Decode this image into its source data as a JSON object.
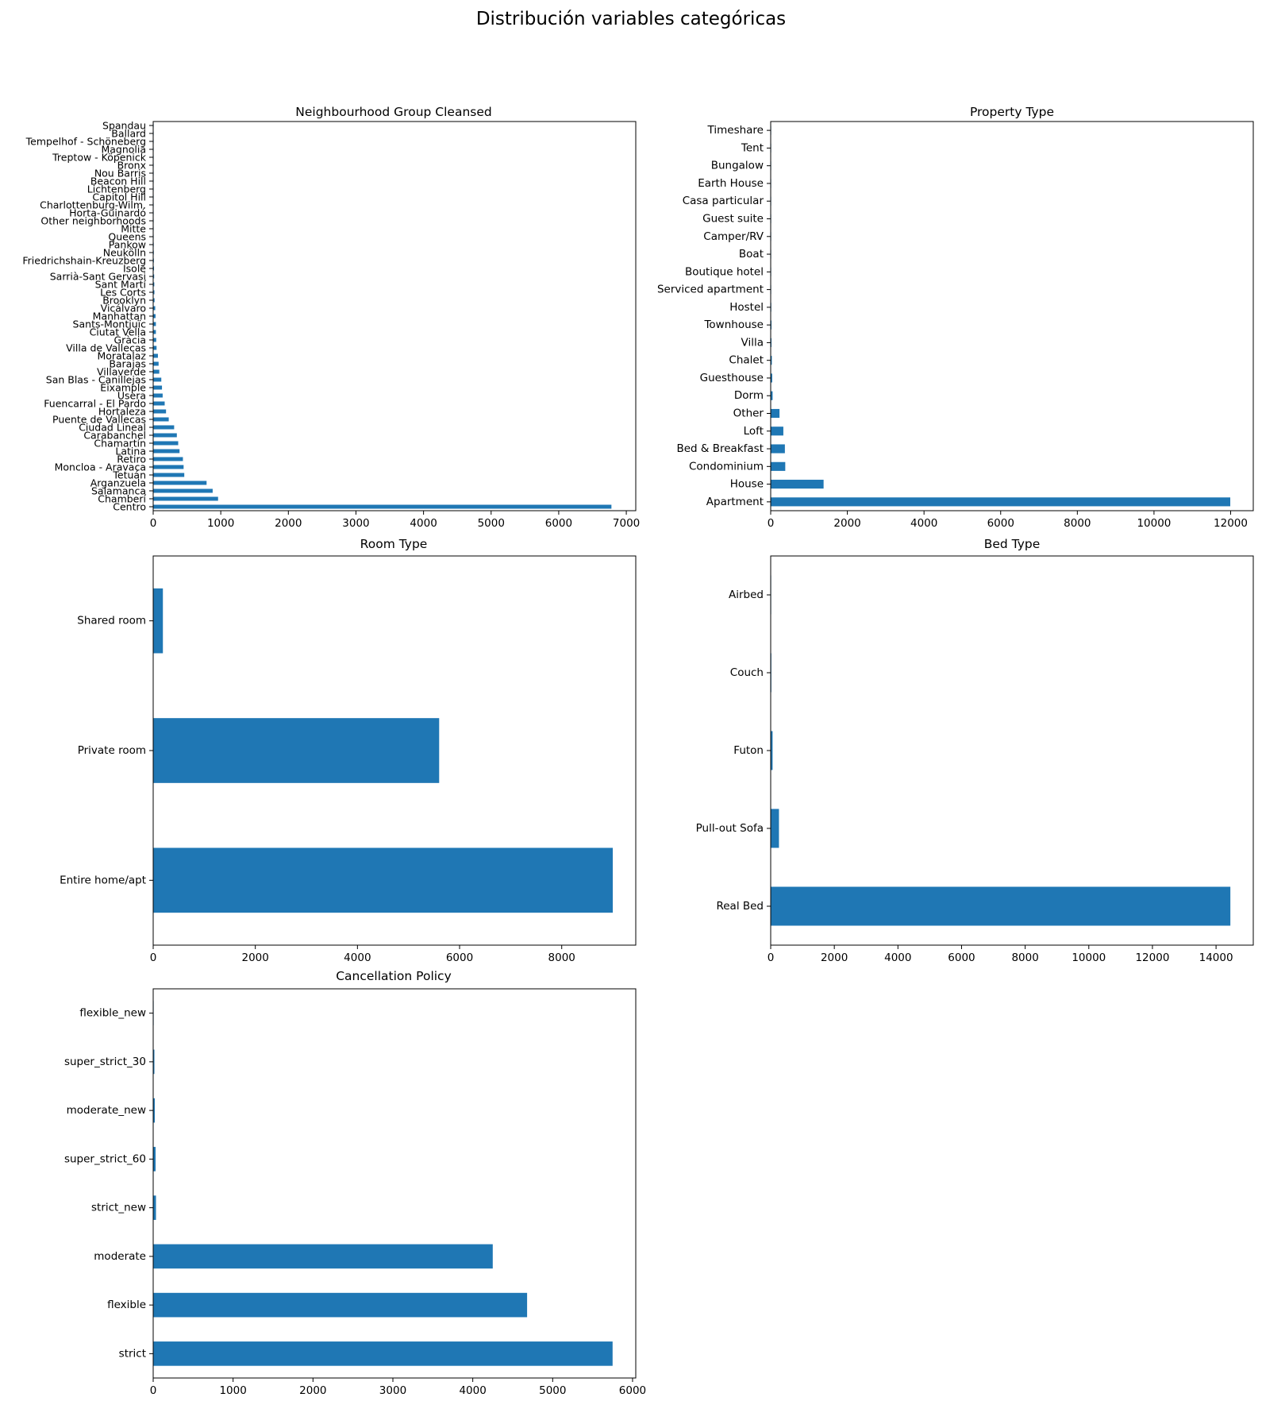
{
  "figure": {
    "suptitle": "Distribución variables categóricas"
  },
  "colors": {
    "bar": "#1f77b4",
    "axis": "#000000",
    "background": "#ffffff"
  },
  "chart_data": [
    {
      "type": "bar",
      "orientation": "horizontal",
      "title": "Neighbourhood Group Cleansed",
      "xlabel": "",
      "ylabel": "",
      "xlim": [
        0,
        7140
      ],
      "xticks": [
        0,
        1000,
        2000,
        3000,
        4000,
        5000,
        6000,
        7000
      ],
      "grid": false,
      "categories": [
        "Centro",
        "Chamberí",
        "Salamanca",
        "Arganzuela",
        "Tetuán",
        "Moncloa - Aravaca",
        "Retiro",
        "Latina",
        "Chamartín",
        "Carabanchel",
        "Ciudad Lineal",
        "Puente de Vallecas",
        "Hortaleza",
        "Fuencarral - El Pardo",
        "Usera",
        "Eixample",
        "San Blas - Canillejas",
        "Villaverde",
        "Barajas",
        "Moratalaz",
        "Villa de Vallecas",
        "Gràcia",
        "Ciutat Vella",
        "Sants-Montjuïc",
        "Manhattan",
        "Vicálvaro",
        "Brooklyn",
        "Les Corts",
        "Sant Martí",
        "Sarrià-Sant Gervasi",
        "Isole",
        "Friedrichshain-Kreuzberg",
        "Neukölln",
        "Pankow",
        "Queens",
        "Mitte",
        "Other neighborhoods",
        "Horta-Guinardó",
        "Charlottenburg-Wilm.",
        "Capitol Hill",
        "Lichtenberg",
        "Beacon Hill",
        "Nou Barris",
        "Bronx",
        "Treptow - Köpenick",
        "Magnolia",
        "Tempelhof - Schöneberg",
        "Ballard",
        "Spandau"
      ],
      "values": [
        6780,
        960,
        880,
        790,
        460,
        450,
        440,
        390,
        370,
        350,
        310,
        230,
        190,
        170,
        140,
        130,
        120,
        90,
        80,
        70,
        50,
        45,
        40,
        40,
        35,
        30,
        20,
        18,
        16,
        14,
        12,
        10,
        9,
        8,
        7,
        7,
        6,
        5,
        5,
        4,
        4,
        3,
        3,
        3,
        2,
        2,
        2,
        2,
        1
      ]
    },
    {
      "type": "bar",
      "orientation": "horizontal",
      "title": "Property Type",
      "xlabel": "",
      "ylabel": "",
      "xlim": [
        0,
        12590
      ],
      "xticks": [
        0,
        2000,
        4000,
        6000,
        8000,
        10000,
        12000
      ],
      "grid": false,
      "categories": [
        "Apartment",
        "House",
        "Condominium",
        "Bed & Breakfast",
        "Loft",
        "Other",
        "Dorm",
        "Guesthouse",
        "Chalet",
        "Villa",
        "Townhouse",
        "Hostel",
        "Serviced apartment",
        "Boutique hotel",
        "Boat",
        "Camper/RV",
        "Guest suite",
        "Casa particular",
        "Earth House",
        "Bungalow",
        "Tent",
        "Timeshare"
      ],
      "values": [
        11990,
        1380,
        380,
        370,
        330,
        230,
        50,
        40,
        30,
        20,
        20,
        15,
        12,
        10,
        8,
        6,
        5,
        4,
        3,
        2,
        2,
        1
      ]
    },
    {
      "type": "bar",
      "orientation": "horizontal",
      "title": "Room Type",
      "xlabel": "",
      "ylabel": "",
      "xlim": [
        0,
        9450
      ],
      "xticks": [
        0,
        2000,
        4000,
        6000,
        8000
      ],
      "grid": false,
      "categories": [
        "Entire home/apt",
        "Private room",
        "Shared room"
      ],
      "values": [
        9000,
        5600,
        190
      ]
    },
    {
      "type": "bar",
      "orientation": "horizontal",
      "title": "Bed Type",
      "xlabel": "",
      "ylabel": "",
      "xlim": [
        0,
        15170
      ],
      "xticks": [
        0,
        2000,
        4000,
        6000,
        8000,
        10000,
        12000,
        14000
      ],
      "grid": false,
      "categories": [
        "Real Bed",
        "Pull-out Sofa",
        "Futon",
        "Couch",
        "Airbed"
      ],
      "values": [
        14450,
        260,
        60,
        20,
        10
      ]
    },
    {
      "type": "bar",
      "orientation": "horizontal",
      "title": "Cancellation Policy",
      "xlabel": "",
      "ylabel": "",
      "xlim": [
        0,
        6040
      ],
      "xticks": [
        0,
        1000,
        2000,
        3000,
        4000,
        5000,
        6000
      ],
      "grid": false,
      "categories": [
        "strict",
        "flexible",
        "moderate",
        "strict_new",
        "super_strict_60",
        "moderate_new",
        "super_strict_30",
        "flexible_new"
      ],
      "values": [
        5750,
        4680,
        4250,
        35,
        30,
        20,
        15,
        5
      ]
    }
  ]
}
